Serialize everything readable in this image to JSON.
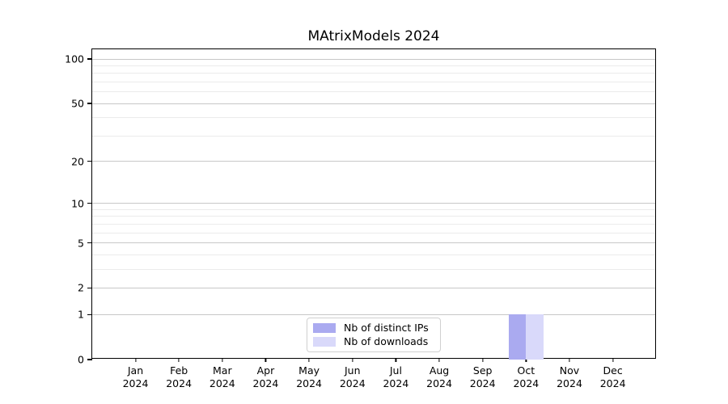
{
  "chart_data": {
    "type": "bar",
    "title": "MAtrixModels 2024",
    "categories": [
      "Jan 2024",
      "Feb 2024",
      "Mar 2024",
      "Apr 2024",
      "May 2024",
      "Jun 2024",
      "Jul 2024",
      "Aug 2024",
      "Sep 2024",
      "Oct 2024",
      "Nov 2024",
      "Dec 2024"
    ],
    "series": [
      {
        "name": "Nb of distinct IPs",
        "color": "#aaaaf0",
        "values": [
          0,
          0,
          0,
          0,
          0,
          0,
          0,
          0,
          0,
          1,
          0,
          0
        ]
      },
      {
        "name": "Nb of downloads",
        "color": "#d9d9fa",
        "values": [
          0,
          0,
          0,
          0,
          0,
          0,
          0,
          0,
          0,
          1,
          0,
          0
        ]
      }
    ],
    "xlabel": "",
    "ylabel": "",
    "yscale": "log1p",
    "yticks": [
      0,
      1,
      2,
      5,
      10,
      20,
      50,
      100
    ],
    "minor_gridlines": [
      3,
      4,
      6,
      7,
      8,
      9,
      30,
      40,
      60,
      70,
      80,
      90
    ],
    "ylim": [
      0,
      116
    ],
    "grid": true,
    "legend_position": "lower center"
  }
}
